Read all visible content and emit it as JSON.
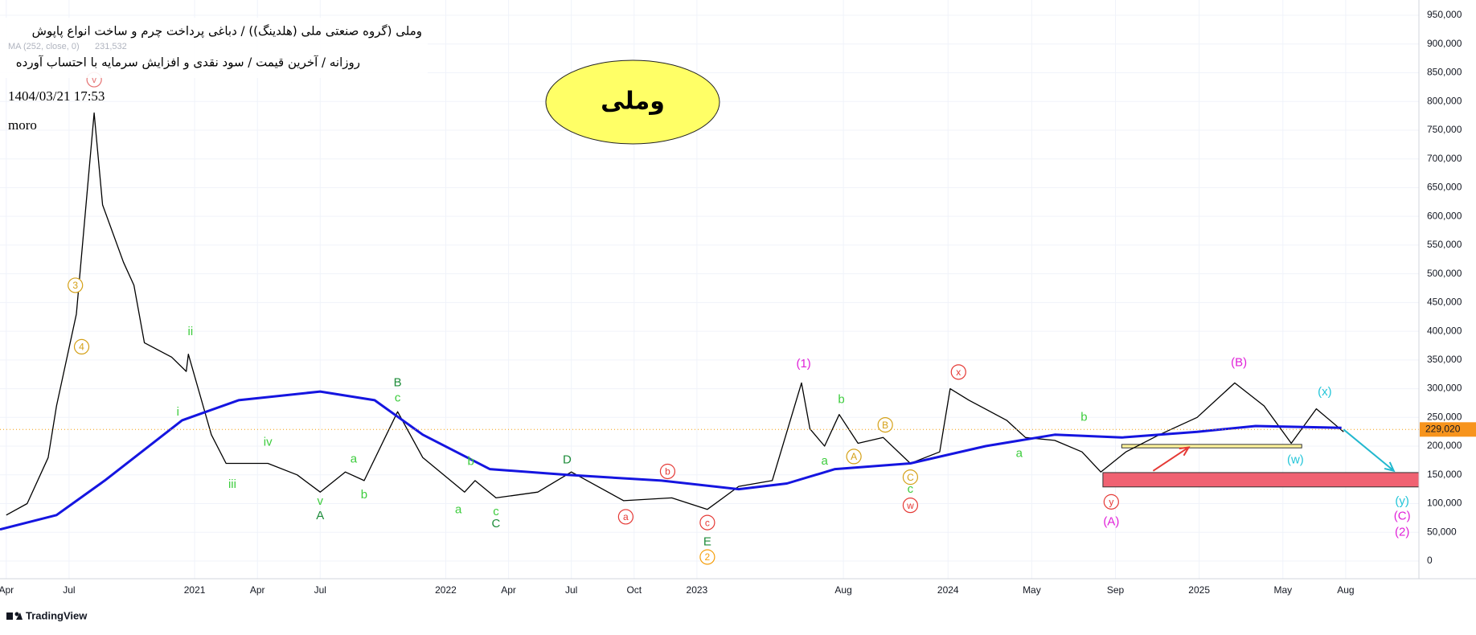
{
  "chart_data": {
    "type": "line",
    "title": "وملی (گروه صنعتی ملی (هلدینگ)) / دباغی پرداخت چرم و ساخت انواع پاپوش",
    "subtitle": "روزانه / آخرین قیمت / سود نقدی و افزایش سرمایه با احتساب آورده",
    "timestamp": "1404/03/21 17:53",
    "author": "moro",
    "symbol": "وملی",
    "ma_value_label": "231,532",
    "last_price": 229020,
    "last_price_label": "229,020",
    "footer": "TradingView",
    "xlim": [
      2.7,
      70.5
    ],
    "ylim": [
      -30800,
      976600
    ],
    "grid": true,
    "xticks": [
      {
        "value": 3,
        "label": "Apr"
      },
      {
        "value": 6,
        "label": "Jul"
      },
      {
        "value": 12,
        "label": "2021"
      },
      {
        "value": 15,
        "label": "Apr"
      },
      {
        "value": 18,
        "label": "Jul"
      },
      {
        "value": 24,
        "label": "2022"
      },
      {
        "value": 27,
        "label": "Apr"
      },
      {
        "value": 30,
        "label": "Jul"
      },
      {
        "value": 33,
        "label": "Oct"
      },
      {
        "value": 36,
        "label": "2023"
      },
      {
        "value": 43,
        "label": "Aug"
      },
      {
        "value": 48,
        "label": "2024"
      },
      {
        "value": 52,
        "label": "May"
      },
      {
        "value": 56,
        "label": "Sep"
      },
      {
        "value": 60,
        "label": "2025"
      },
      {
        "value": 64,
        "label": "May"
      },
      {
        "value": 67,
        "label": "Aug"
      }
    ],
    "yticks": [
      0,
      {
        "value": 50000,
        "label": "50,000"
      },
      {
        "value": 100000,
        "label": "100,000"
      },
      {
        "value": 150000,
        "label": "150,000"
      },
      {
        "value": 200000,
        "label": "200,000"
      },
      {
        "value": 250000,
        "label": "250,000"
      },
      {
        "value": 300000,
        "label": "300,000"
      },
      {
        "value": 350000,
        "label": "350,000"
      },
      {
        "value": 400000,
        "label": "400,000"
      },
      {
        "value": 450000,
        "label": "450,000"
      },
      {
        "value": 500000,
        "label": "500,000"
      },
      {
        "value": 550000,
        "label": "550,000"
      },
      {
        "value": 600000,
        "label": "600,000"
      },
      {
        "value": 650000,
        "label": "650,000"
      },
      {
        "value": 700000,
        "label": "700,000"
      },
      {
        "value": 750000,
        "label": "750,000"
      },
      {
        "value": 800000,
        "label": "800,000"
      },
      {
        "value": 850000,
        "label": "850,000"
      },
      {
        "value": 900000,
        "label": "900,000"
      },
      {
        "value": 950000,
        "label": "950,000"
      }
    ],
    "series": [
      {
        "color": "#000000",
        "x": [
          3.0,
          4.0,
          5.0,
          5.4,
          6.35,
          7.2,
          7.6,
          8.6,
          9.1,
          9.6,
          10.9,
          11.6,
          11.7,
          12.8,
          13.5,
          15.5,
          16.9,
          18.0,
          19.2,
          20.1,
          21.7,
          22.9,
          24.9,
          25.4,
          26.4,
          28.4,
          30.0,
          32.5,
          34.8,
          36.5,
          38.0,
          39.6,
          41.0,
          41.4,
          42.1,
          42.8,
          43.7,
          44.9,
          46.2,
          47.6,
          48.1,
          49.0,
          50.8,
          51.7,
          53.1,
          54.4,
          55.3,
          56.5,
          58.1,
          59.9,
          61.7,
          63.1,
          64.4,
          65.6,
          66.9
        ],
        "values": [
          80000,
          100000,
          180000,
          270000,
          430000,
          780000,
          620000,
          520000,
          480000,
          380000,
          355000,
          330000,
          360000,
          220000,
          170000,
          170000,
          150000,
          120000,
          155000,
          140000,
          260000,
          180000,
          120000,
          140000,
          110000,
          120000,
          155000,
          105000,
          110000,
          90000,
          130000,
          140000,
          310000,
          230000,
          200000,
          255000,
          205000,
          215000,
          170000,
          190000,
          300000,
          280000,
          245000,
          215000,
          210000,
          190000,
          155000,
          190000,
          220000,
          250000,
          310000,
          270000,
          205000,
          265000,
          225000
        ]
      },
      {
        "name": "MA (252, close, 0)",
        "color": "#1515e0",
        "x": [
          2.7,
          5.4,
          7.7,
          11.4,
          14.1,
          18.0,
          20.6,
          22.9,
          26.1,
          29.8,
          34.3,
          38.0,
          40.3,
          42.6,
          46.2,
          49.8,
          53.1,
          56.3,
          59.9,
          62.7,
          66.8
        ],
        "values": [
          55000,
          80000,
          140000,
          245000,
          280000,
          295000,
          280000,
          220000,
          160000,
          150000,
          140000,
          125000,
          135000,
          160000,
          170000,
          200000,
          220000,
          215000,
          225000,
          235000,
          232000
        ]
      }
    ],
    "zones": [
      {
        "x0": 55.4,
        "x1": 70.5,
        "y0": 129000,
        "y1": 154000,
        "color": "#f06272"
      },
      {
        "x0": 56.3,
        "x1": 64.9,
        "y0": 197000,
        "y1": 203000,
        "color": "#fff59d"
      }
    ],
    "arrows": [
      {
        "x0": 66.9,
        "y0": 229000,
        "x1": 69.3,
        "y1": 157000,
        "color": "#22b8cf"
      },
      {
        "x0": 57.8,
        "y0": 157000,
        "x1": 59.5,
        "y1": 198000,
        "color": "#e53935"
      }
    ],
    "annotations": [
      {
        "text": "v",
        "x": 7.2,
        "y": 838000,
        "color": "#e57373",
        "circled": true
      },
      {
        "text": "3",
        "x": 6.3,
        "y": 480000,
        "color": "#d4a017",
        "circled": true
      },
      {
        "text": "4",
        "x": 6.6,
        "y": 373000,
        "color": "#d4a017",
        "circled": true
      },
      {
        "text": "ii",
        "x": 11.8,
        "y": 400000,
        "color": "#3dcc3d"
      },
      {
        "text": "i",
        "x": 11.2,
        "y": 260000,
        "color": "#3dcc3d"
      },
      {
        "text": "iii",
        "x": 13.8,
        "y": 134000,
        "color": "#3dcc3d"
      },
      {
        "text": "iv",
        "x": 15.5,
        "y": 208000,
        "color": "#3dcc3d"
      },
      {
        "text": "v",
        "x": 18.0,
        "y": 105000,
        "color": "#3dcc3d"
      },
      {
        "text": "A",
        "x": 18.0,
        "y": 80000,
        "color": "#1e8c3a"
      },
      {
        "text": "a",
        "x": 19.6,
        "y": 178000,
        "color": "#3dcc3d"
      },
      {
        "text": "b",
        "x": 20.1,
        "y": 116000,
        "color": "#3dcc3d"
      },
      {
        "text": "B",
        "x": 21.7,
        "y": 311000,
        "color": "#1e8c3a"
      },
      {
        "text": "c",
        "x": 21.7,
        "y": 285000,
        "color": "#3dcc3d"
      },
      {
        "text": "a",
        "x": 24.6,
        "y": 90000,
        "color": "#3dcc3d"
      },
      {
        "text": "b",
        "x": 25.2,
        "y": 174000,
        "color": "#3dcc3d"
      },
      {
        "text": "c",
        "x": 26.4,
        "y": 87000,
        "color": "#3dcc3d"
      },
      {
        "text": "C",
        "x": 26.4,
        "y": 66000,
        "color": "#1e8c3a"
      },
      {
        "text": "D",
        "x": 29.8,
        "y": 177000,
        "color": "#1e8c3a"
      },
      {
        "text": "b",
        "x": 34.6,
        "y": 156000,
        "color": "#e53935",
        "circled": true
      },
      {
        "text": "a",
        "x": 32.6,
        "y": 77000,
        "color": "#e53935",
        "circled": true
      },
      {
        "text": "c",
        "x": 36.5,
        "y": 67000,
        "color": "#e53935",
        "circled": true
      },
      {
        "text": "E",
        "x": 36.5,
        "y": 34000,
        "color": "#1e8c3a"
      },
      {
        "text": "2",
        "x": 36.5,
        "y": 7000,
        "color": "#f59e0b",
        "circled": true
      },
      {
        "text": "(1)",
        "x": 41.1,
        "y": 344000,
        "color": "#e020d8"
      },
      {
        "text": "b",
        "x": 42.9,
        "y": 282000,
        "color": "#3dcc3d"
      },
      {
        "text": "a",
        "x": 42.1,
        "y": 175000,
        "color": "#3dcc3d"
      },
      {
        "text": "B",
        "x": 45.0,
        "y": 237000,
        "color": "#d4a017",
        "circled": true
      },
      {
        "text": "A",
        "x": 43.5,
        "y": 182000,
        "color": "#d4a017",
        "circled": true
      },
      {
        "text": "C",
        "x": 46.2,
        "y": 146000,
        "color": "#d4a017",
        "circled": true
      },
      {
        "text": "c",
        "x": 46.2,
        "y": 126000,
        "color": "#3dcc3d"
      },
      {
        "text": "w",
        "x": 46.2,
        "y": 97000,
        "color": "#e53935",
        "circled": true
      },
      {
        "text": "x",
        "x": 48.5,
        "y": 329000,
        "color": "#e53935",
        "circled": true
      },
      {
        "text": "a",
        "x": 51.4,
        "y": 188000,
        "color": "#3dcc3d"
      },
      {
        "text": "b",
        "x": 54.5,
        "y": 251000,
        "color": "#3dcc3d"
      },
      {
        "text": "y",
        "x": 55.8,
        "y": 103000,
        "color": "#e53935",
        "circled": true
      },
      {
        "text": "(A)",
        "x": 55.8,
        "y": 69000,
        "color": "#e020d8"
      },
      {
        "text": "(B)",
        "x": 61.9,
        "y": 346000,
        "color": "#e020d8"
      },
      {
        "text": "(x)",
        "x": 66.0,
        "y": 295000,
        "color": "#22c5d8"
      },
      {
        "text": "(w)",
        "x": 64.6,
        "y": 177000,
        "color": "#22c5d8"
      },
      {
        "text": "(y)",
        "x": 69.7,
        "y": 105000,
        "color": "#22c5d8"
      },
      {
        "text": "(C)",
        "x": 69.7,
        "y": 79000,
        "color": "#e020d8"
      },
      {
        "text": "(2)",
        "x": 69.7,
        "y": 51000,
        "color": "#e020d8"
      }
    ]
  }
}
